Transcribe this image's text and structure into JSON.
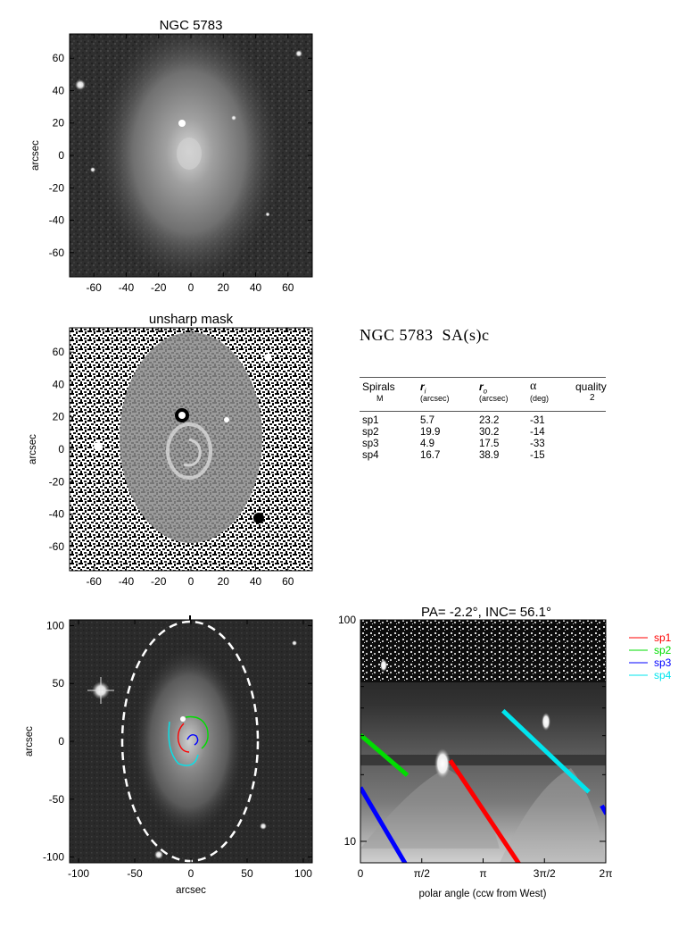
{
  "panels": {
    "image": {
      "title": "NGC 5783",
      "ylabel": "arcsec",
      "xticks": [
        "-60",
        "-40",
        "-20",
        "0",
        "20",
        "40",
        "60"
      ],
      "yticks": [
        "60",
        "40",
        "20",
        "0",
        "-20",
        "-40",
        "-60"
      ]
    },
    "unsharp": {
      "title": "unsharp mask",
      "ylabel": "arcsec",
      "xticks": [
        "-60",
        "-40",
        "-20",
        "0",
        "20",
        "40",
        "60"
      ],
      "yticks": [
        "60",
        "40",
        "20",
        "0",
        "-20",
        "-40",
        "-60"
      ]
    },
    "overlay": {
      "ylabel": "arcsec",
      "xlabel": "arcsec",
      "xticks": [
        "-100",
        "-50",
        "0",
        "50",
        "100"
      ],
      "yticks": [
        "100",
        "50",
        "0",
        "-50",
        "-100"
      ]
    },
    "polar": {
      "title": "PA=  -2.2°, INC=  56.1°",
      "xlabel": "polar angle (ccw from West)",
      "xticks": [
        "0",
        "π/2",
        "π",
        "3π/2",
        "2π"
      ],
      "yticks": [
        "100",
        "10"
      ]
    }
  },
  "info": {
    "title": "NGC 5783  SA(s)c",
    "columns": [
      {
        "label": "Spirals",
        "sub": "M"
      },
      {
        "label": "r",
        "subscript": "i",
        "sub": "(arcsec)"
      },
      {
        "label": "r",
        "subscript": "o",
        "sub": "(arcsec)"
      },
      {
        "label": "α",
        "sub": "(deg)"
      },
      {
        "label": "quality",
        "sub": "2"
      }
    ],
    "rows": [
      [
        "sp1",
        "5.7",
        "23.2",
        "-31"
      ],
      [
        "sp2",
        "19.9",
        "30.2",
        "-14"
      ],
      [
        "sp3",
        "4.9",
        "17.5",
        "-33"
      ],
      [
        "sp4",
        "16.7",
        "38.9",
        "-15"
      ]
    ]
  },
  "legend": [
    {
      "name": "sp1",
      "color": "#ff0000"
    },
    {
      "name": "sp2",
      "color": "#00dd00"
    },
    {
      "name": "sp3",
      "color": "#0000ff"
    },
    {
      "name": "sp4",
      "color": "#00e5ee"
    }
  ],
  "chart_data": [
    {
      "type": "scatter",
      "title": "NGC 5783",
      "ylabel": "arcsec",
      "xlim": [
        -75,
        75
      ],
      "ylim": [
        -75,
        75
      ]
    },
    {
      "type": "scatter",
      "title": "unsharp mask",
      "ylabel": "arcsec",
      "xlim": [
        -75,
        75
      ],
      "ylim": [
        -75,
        75
      ]
    },
    {
      "type": "line",
      "xlabel": "arcsec",
      "ylabel": "arcsec",
      "xlim": [
        -108,
        108
      ],
      "ylim": [
        -105,
        105
      ]
    },
    {
      "type": "line",
      "title": "PA=  -2.2°, INC=  56.1°",
      "xlabel": "polar angle (ccw from West)",
      "x_unit": "radians",
      "y_scale": "log",
      "ylim": [
        8,
        100
      ],
      "series": [
        {
          "name": "sp1",
          "color": "#ff0000",
          "x": [
            2.3,
            4.6
          ],
          "y": [
            23.2,
            5.7
          ]
        },
        {
          "name": "sp2",
          "color": "#00dd00",
          "x": [
            0.0,
            1.2
          ],
          "y": [
            30.2,
            19.9
          ]
        },
        {
          "name": "sp3",
          "color": "#0000ff",
          "x": [
            0.0,
            1.85
          ],
          "y": [
            17.5,
            4.9
          ]
        },
        {
          "name": "sp4",
          "color": "#00e5ee",
          "x": [
            3.65,
            5.85
          ],
          "y": [
            38.9,
            16.7
          ]
        }
      ]
    }
  ]
}
